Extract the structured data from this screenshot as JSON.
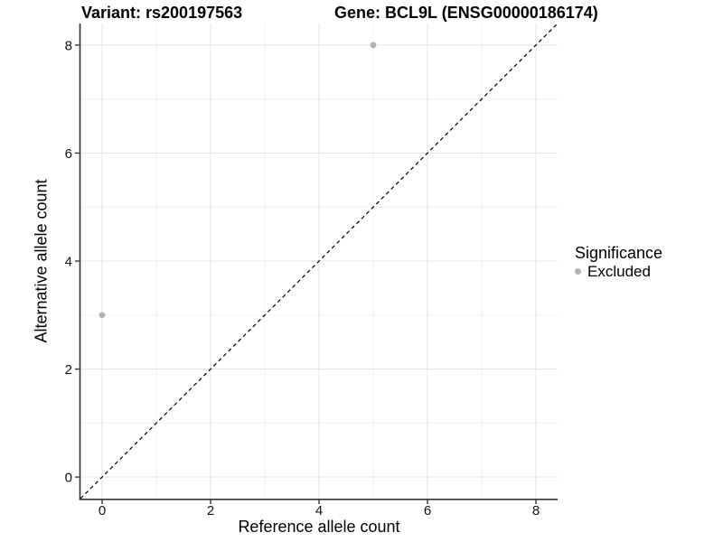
{
  "chart_data": {
    "type": "scatter",
    "title_left": "Variant: rs200197563",
    "title_right": "Gene: BCL9L (ENSG00000186174)",
    "xlabel": "Reference allele count",
    "ylabel": "Alternative allele count",
    "xlim": [
      -0.4,
      8.4
    ],
    "ylim": [
      -0.4,
      8.4
    ],
    "x_ticks": [
      0,
      2,
      4,
      6,
      8
    ],
    "y_ticks": [
      0,
      2,
      4,
      6,
      8
    ],
    "x_minor_ticks": [
      1,
      3,
      5,
      7
    ],
    "y_minor_ticks": [
      1,
      3,
      5,
      7
    ],
    "grid": "major+minor",
    "identity_line": {
      "style": "dashed",
      "equation": "y = x",
      "from": -0.4,
      "to": 8.4,
      "color": "#000000"
    },
    "series": [
      {
        "name": "Excluded",
        "color": "#b3b3b3",
        "points": [
          {
            "x": 5,
            "y": 8
          },
          {
            "x": 0,
            "y": 3
          }
        ]
      }
    ],
    "legend": {
      "title": "Significance",
      "position": "right",
      "items": [
        {
          "label": "Excluded",
          "color": "#b3b3b3"
        }
      ]
    },
    "style": {
      "background": "#ffffff",
      "grid_major": "#e5e5e5",
      "grid_minor": "#f1f1f1",
      "axis_line": "#333333",
      "tick_mark": "#333333",
      "tick_text": "#111111",
      "point_color": "#b3b3b3"
    }
  }
}
